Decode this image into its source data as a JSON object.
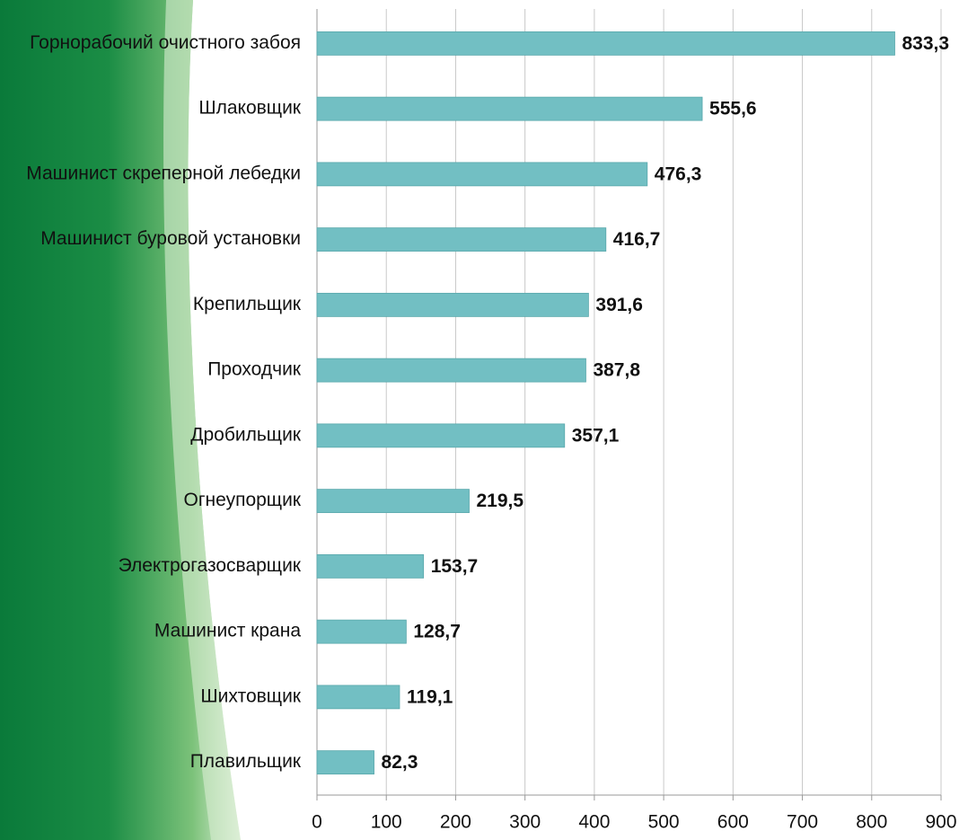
{
  "chart_data": {
    "type": "barh",
    "categories": [
      "Горнорабочий очистного забоя",
      "Шлаковщик",
      "Машинист скреперной лебедки",
      "Машинист буровой установки",
      "Крепильщик",
      "Проходчик",
      "Дробильщик",
      "Огнеупорщик",
      "Электрогазосварщик",
      "Машинист крана",
      "Шихтовщик",
      "Плавильщик"
    ],
    "values": [
      833.3,
      555.6,
      476.3,
      416.7,
      391.6,
      387.8,
      357.1,
      219.5,
      153.7,
      128.7,
      119.1,
      82.3
    ],
    "value_labels": [
      "833,3",
      "555,6",
      "476,3",
      "416,7",
      "391,6",
      "387,8",
      "357,1",
      "219,5",
      "153,7",
      "128,7",
      "119,1",
      "82,3"
    ],
    "color": "#72bfc3",
    "xlim": [
      0,
      900
    ],
    "xticks": [
      0,
      100,
      200,
      300,
      400,
      500,
      600,
      700,
      800,
      900
    ],
    "grid": true
  }
}
